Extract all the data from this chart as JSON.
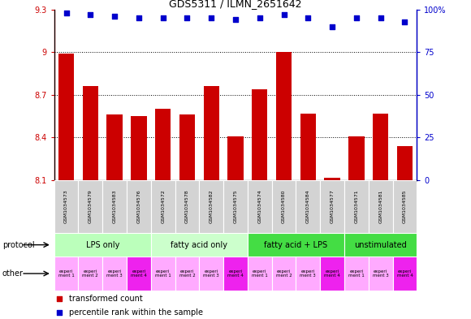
{
  "title": "GDS5311 / ILMN_2651642",
  "samples": [
    "GSM1034573",
    "GSM1034579",
    "GSM1034583",
    "GSM1034576",
    "GSM1034572",
    "GSM1034578",
    "GSM1034582",
    "GSM1034575",
    "GSM1034574",
    "GSM1034580",
    "GSM1034584",
    "GSM1034577",
    "GSM1034571",
    "GSM1034581",
    "GSM1034585"
  ],
  "bar_values": [
    8.99,
    8.76,
    8.56,
    8.55,
    8.6,
    8.56,
    8.76,
    8.41,
    8.74,
    9.0,
    8.57,
    8.12,
    8.41,
    8.57,
    8.34
  ],
  "percentile_values": [
    98,
    97,
    96,
    95,
    95,
    95,
    95,
    94,
    95,
    97,
    95,
    90,
    95,
    95,
    93
  ],
  "ylim_left": [
    8.1,
    9.3
  ],
  "ylim_right": [
    0,
    100
  ],
  "yticks_left": [
    8.1,
    8.4,
    8.7,
    9.0,
    9.3
  ],
  "ytick_labels_left": [
    "8.1",
    "8.4",
    "8.7",
    "9",
    "9.3"
  ],
  "yticks_right": [
    0,
    25,
    50,
    75,
    100
  ],
  "ytick_labels_right": [
    "0",
    "25",
    "50",
    "75",
    "100%"
  ],
  "grid_yticks": [
    8.4,
    8.7,
    9.0
  ],
  "bar_color": "#cc0000",
  "dot_color": "#0000cc",
  "protocol_groups": [
    {
      "label": "LPS only",
      "start": 0,
      "end": 4,
      "color": "#bbffbb"
    },
    {
      "label": "fatty acid only",
      "start": 4,
      "end": 8,
      "color": "#ccffcc"
    },
    {
      "label": "fatty acid + LPS",
      "start": 8,
      "end": 12,
      "color": "#44dd44"
    },
    {
      "label": "unstimulated",
      "start": 12,
      "end": 15,
      "color": "#44dd44"
    }
  ],
  "other_light": "#ffaaff",
  "other_dark": "#ee22ee",
  "other_dark_indices": [
    3,
    7,
    11,
    14
  ],
  "other_labels": [
    "experi\nment 1",
    "experi\nment 2",
    "experi\nment 3",
    "experi\nment 4",
    "experi\nment 1",
    "experi\nment 2",
    "experi\nment 3",
    "experi\nment 4",
    "experi\nment 1",
    "experi\nment 2",
    "experi\nment 3",
    "experi\nment 4",
    "experi\nment 1",
    "experi\nment 3",
    "experi\nment 4"
  ],
  "grid_color": "#000000",
  "left_axis_color": "#cc0000",
  "right_axis_color": "#0000cc",
  "sample_bg": "#d3d3d3",
  "legend_bar_label": "transformed count",
  "legend_dot_label": "percentile rank within the sample",
  "protocol_label": "protocol",
  "other_label": "other"
}
